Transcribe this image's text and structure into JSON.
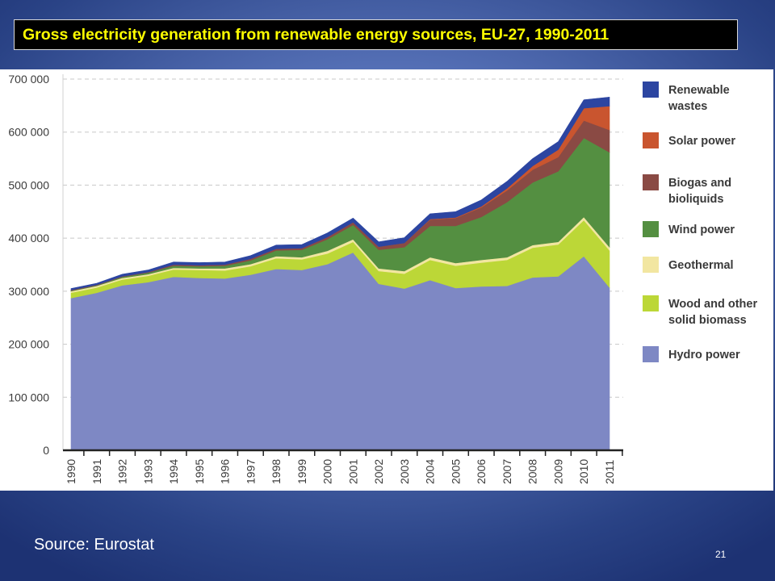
{
  "slide": {
    "title": "Gross electricity generation from renewable energy sources, EU-27, 1990-2011",
    "source": "Source: Eurostat",
    "page_number": "21"
  },
  "colors": {
    "title_text": "#ffff00",
    "title_background": "#000000"
  },
  "chart_data": {
    "type": "area",
    "stacked": true,
    "title": "",
    "xlabel": "",
    "ylabel": "",
    "grid": true,
    "legend_position": "right",
    "ylim": [
      0,
      700000
    ],
    "y_ticks": [
      0,
      100000,
      200000,
      300000,
      400000,
      500000,
      600000,
      700000
    ],
    "y_tick_labels": [
      "0",
      "100 000",
      "200 000",
      "300 000",
      "400 000",
      "500 000",
      "600 000",
      "700 000"
    ],
    "x": [
      "1990",
      "1991",
      "1992",
      "1993",
      "1994",
      "1995",
      "1996",
      "1997",
      "1998",
      "1999",
      "2000",
      "2001",
      "2002",
      "2003",
      "2004",
      "2005",
      "2006",
      "2007",
      "2008",
      "2009",
      "2010",
      "2011"
    ],
    "series": [
      {
        "name": "Hydro power",
        "color": "#7e88c4",
        "values": [
          287000,
          297000,
          311000,
          317000,
          327000,
          325000,
          324000,
          331000,
          342000,
          340000,
          351000,
          373000,
          314000,
          305000,
          321000,
          306000,
          309000,
          310000,
          326000,
          328000,
          366000,
          307000
        ]
      },
      {
        "name": "Wood and other solid biomass",
        "color": "#bcd737",
        "values": [
          10000,
          10000,
          11000,
          12000,
          14000,
          15000,
          15000,
          16000,
          20000,
          20000,
          20000,
          20000,
          24000,
          28000,
          38000,
          42000,
          45000,
          49000,
          56000,
          60000,
          68000,
          70000
        ]
      },
      {
        "name": "Geothermal",
        "color": "#f2e6a1",
        "values": [
          3000,
          3000,
          3000,
          3000,
          3000,
          3000,
          4000,
          4000,
          4000,
          4000,
          5000,
          5000,
          5000,
          5000,
          5000,
          5000,
          5000,
          5000,
          5000,
          5000,
          6000,
          6000
        ]
      },
      {
        "name": "Wind power",
        "color": "#548f41",
        "values": [
          1000,
          1000,
          2000,
          3000,
          4000,
          4000,
          5000,
          7000,
          11000,
          14000,
          22000,
          27000,
          35000,
          45000,
          59000,
          70000,
          81000,
          104000,
          118000,
          133000,
          149000,
          179000
        ]
      },
      {
        "name": "Biogas and bioliquids",
        "color": "#8a4a44",
        "values": [
          1000,
          1000,
          1000,
          1000,
          2000,
          2000,
          2000,
          3000,
          3000,
          3000,
          4000,
          5000,
          6000,
          8000,
          12000,
          15000,
          18000,
          22000,
          24000,
          27000,
          33000,
          42000
        ]
      },
      {
        "name": "Solar power",
        "color": "#c9552f",
        "values": [
          0,
          0,
          0,
          0,
          0,
          0,
          0,
          0,
          0,
          0,
          0,
          0,
          0,
          0,
          1000,
          1000,
          2000,
          4000,
          7000,
          14000,
          23000,
          45000
        ]
      },
      {
        "name": "Renewable wastes",
        "color": "#2c45a1",
        "values": [
          3000,
          3000,
          4000,
          4000,
          5000,
          5000,
          5000,
          6000,
          7000,
          7000,
          8000,
          8000,
          9000,
          10000,
          10000,
          11000,
          12000,
          13000,
          14000,
          15000,
          16000,
          17000
        ]
      }
    ],
    "legend_order": [
      "Renewable wastes",
      "Solar power",
      "Biogas and bioliquids",
      "Wind power",
      "Geothermal",
      "Wood and other solid biomass",
      "Hydro power"
    ]
  }
}
